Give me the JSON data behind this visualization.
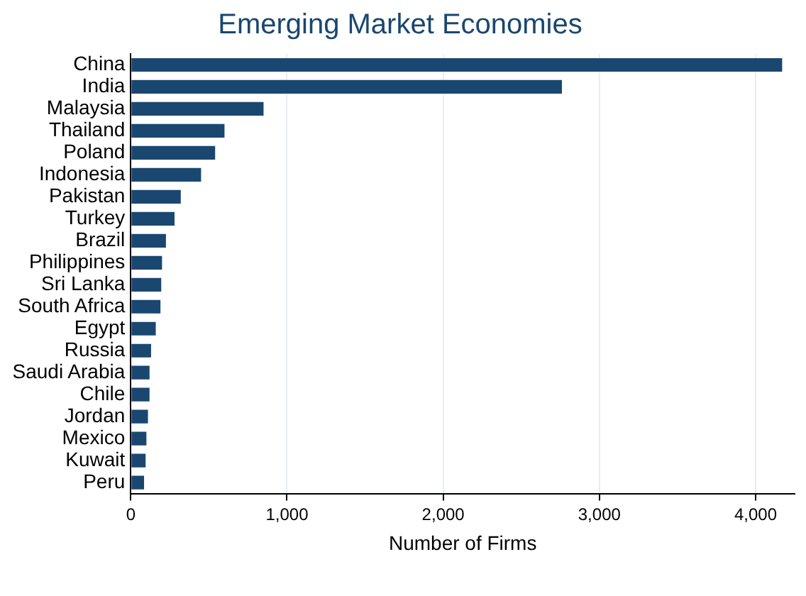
{
  "chart_data": {
    "type": "bar",
    "orientation": "horizontal",
    "title": "Emerging Market Economies",
    "xlabel": "Number of Firms",
    "categories": [
      "China",
      "India",
      "Malaysia",
      "Thailand",
      "Poland",
      "Indonesia",
      "Pakistan",
      "Turkey",
      "Brazil",
      "Philippines",
      "Sri Lanka",
      "South Africa",
      "Egypt",
      "Russia",
      "Saudi Arabia",
      "Chile",
      "Jordan",
      "Mexico",
      "Kuwait",
      "Peru"
    ],
    "values": [
      4170,
      2760,
      850,
      600,
      540,
      450,
      320,
      280,
      225,
      200,
      195,
      190,
      160,
      130,
      120,
      120,
      110,
      100,
      95,
      85
    ],
    "color": "#1a476f",
    "xlim": [
      0,
      4250
    ],
    "xticks": [
      {
        "value": 0,
        "label": "0"
      },
      {
        "value": 1000,
        "label": "1,000"
      },
      {
        "value": 2000,
        "label": "2,000"
      },
      {
        "value": 3000,
        "label": "3,000"
      },
      {
        "value": 4000,
        "label": "4,000"
      }
    ],
    "grid": "x",
    "legend": false
  }
}
